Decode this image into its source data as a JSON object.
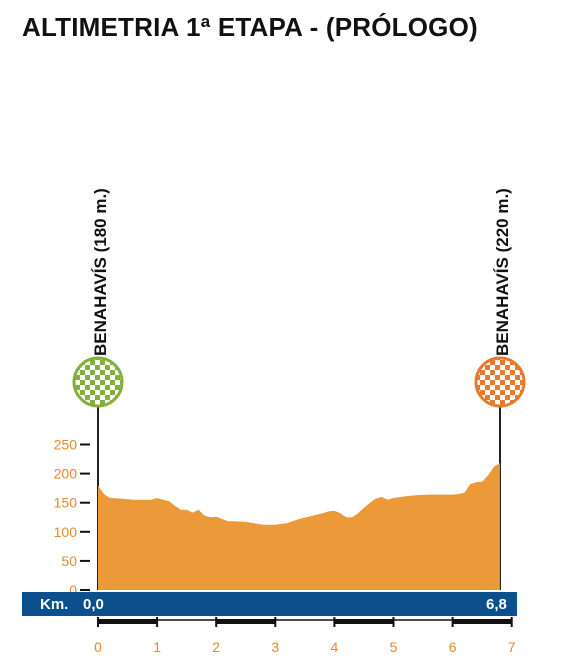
{
  "title": "ALTIMETRIA 1ª ETAPA - (PRÓLOGO)",
  "colors": {
    "profile_fill": "#ec9a39",
    "axis_text": "#e8892b",
    "km_bar": "#0b4f8c",
    "start_flag": "#7fb13c",
    "finish_flag": "#e8792d"
  },
  "chart_data": {
    "type": "area",
    "title": "ALTIMETRIA 1ª ETAPA - (PRÓLOGO)",
    "xlabel": "",
    "ylabel": "",
    "xlim": [
      0,
      7
    ],
    "ylim": [
      0,
      250
    ],
    "x_ticks": [
      "0",
      "1",
      "2",
      "3",
      "4",
      "5",
      "6",
      "7"
    ],
    "y_ticks": [
      "0",
      "50",
      "100",
      "150",
      "200",
      "250"
    ],
    "x": [
      0,
      0.1,
      0.2,
      0.4,
      0.6,
      0.9,
      1.0,
      1.1,
      1.2,
      1.3,
      1.4,
      1.5,
      1.6,
      1.7,
      1.8,
      1.9,
      2.0,
      2.2,
      2.3,
      2.5,
      2.8,
      3.0,
      3.2,
      3.4,
      3.6,
      3.8,
      3.9,
      4.0,
      4.1,
      4.2,
      4.3,
      4.4,
      4.5,
      4.6,
      4.7,
      4.8,
      4.9,
      5.0,
      5.2,
      5.4,
      5.6,
      5.8,
      6.0,
      6.1,
      6.2,
      6.3,
      6.4,
      6.5,
      6.6,
      6.7,
      6.8
    ],
    "y": [
      180,
      165,
      158,
      157,
      155,
      155,
      158,
      155,
      153,
      145,
      138,
      138,
      133,
      138,
      128,
      125,
      126,
      118,
      118,
      117,
      112,
      112,
      115,
      122,
      127,
      132,
      135,
      136,
      132,
      125,
      125,
      132,
      141,
      150,
      157,
      160,
      155,
      158,
      161,
      163,
      164,
      164,
      164,
      165,
      167,
      182,
      185,
      186,
      197,
      212,
      218
    ],
    "start": {
      "km": "0,0",
      "label": "BENAHAVÍS (180 m.)"
    },
    "finish": {
      "km": "6,8",
      "label": "BENAHAVÍS (220 m.)"
    },
    "km_bar_label": "Km."
  }
}
